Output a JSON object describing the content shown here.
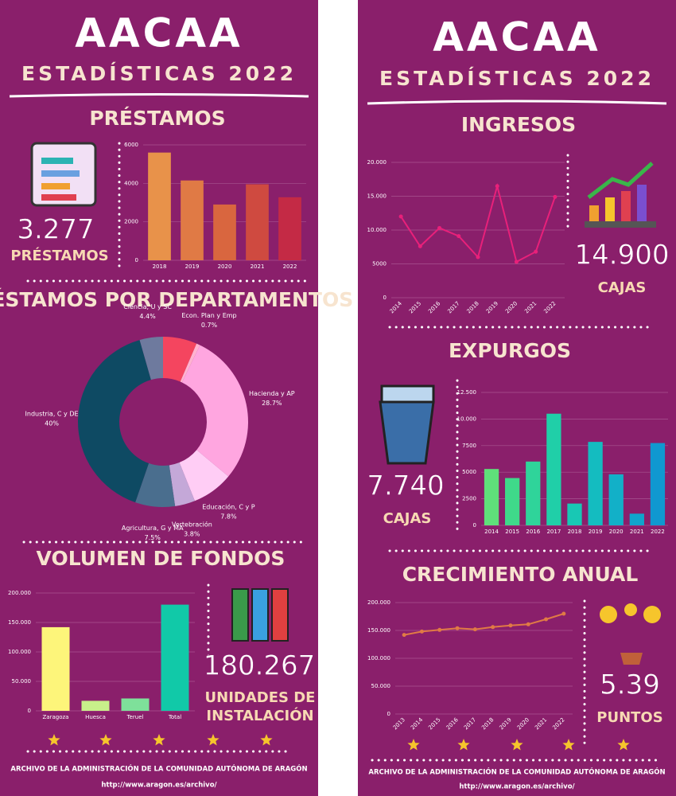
{
  "panels": [
    {
      "title": "AACAA",
      "subtitle": "ESTADÍSTICAS 2022",
      "footer": "ARCHIVO DE LA ADMINISTRACIÓN DE LA COMUNIDAD AUTÓNOMA DE ARAGÓN",
      "url": "http://www.aragon.es/archivo/"
    },
    {
      "title": "AACAA",
      "subtitle": "ESTADÍSTICAS 2022",
      "footer": "ARCHIVO DE LA ADMINISTRACIÓN DE LA COMUNIDAD AUTÓNOMA DE ARAGÓN",
      "url": "http://www.aragon.es/archivo/"
    }
  ],
  "chart_data": [
    {
      "type": "bar",
      "title": "PRÉSTAMOS",
      "categories": [
        "2018",
        "2019",
        "2020",
        "2021",
        "2022"
      ],
      "values": [
        5600,
        4150,
        2900,
        3950,
        3277
      ],
      "colors": [
        "#e8924a",
        "#e07a45",
        "#d9663f",
        "#cf4a40",
        "#c42a45"
      ],
      "ylim": [
        0,
        6000
      ],
      "yticks": [
        0,
        2000,
        4000,
        6000
      ],
      "grid": true,
      "annotations": [
        "3.277",
        "PRÉSTAMOS"
      ]
    },
    {
      "type": "pie",
      "title": "PRÉSTAMOS POR DEPARTAMENTOS",
      "categories": [
        null,
        "Econ. Plan y Emp",
        "Hacienda y AP",
        "Educación, C y P",
        "Vertebración",
        "Agricultura, G y MA",
        "Industria, C y DE",
        "Ciencia, U y SC"
      ],
      "values": [
        6.4,
        0.7,
        28.7,
        7.8,
        3.8,
        7.5,
        40,
        4.4
      ],
      "value_labels": [
        null,
        "0.7%",
        "28.7%",
        "7.8%",
        "3.8%",
        "7.5%",
        "40%",
        "4.4%"
      ],
      "colors": [
        "#f4455f",
        "#ffb3d0",
        "#ffa6e0",
        "#ffcdf5",
        "#c4a8d8",
        "#4a6e8e",
        "#0e4a63",
        "#6e7a9e"
      ]
    },
    {
      "type": "bar",
      "title": "VOLUMEN DE FONDOS",
      "categories": [
        "Zaragoza",
        "Huesca",
        "Teruel",
        "Total"
      ],
      "values": [
        142000,
        17000,
        21000,
        180267
      ],
      "colors": [
        "#fdf57a",
        "#c8f08a",
        "#7ee09a",
        "#11c9a8"
      ],
      "ylim": [
        0,
        200000
      ],
      "yticks": [
        0,
        {
          "value": 50000,
          "label": "50.000"
        },
        {
          "value": 100000,
          "label": "100.000"
        },
        {
          "value": 150000,
          "label": "150.000"
        },
        {
          "value": 200000,
          "label": "200.000"
        }
      ],
      "grid": true,
      "annotations": [
        "180.267",
        "UNIDADES DE",
        "INSTALACIÓN"
      ]
    },
    {
      "type": "line",
      "title": "INGRESOS",
      "categories": [
        "2014",
        "2015",
        "2016",
        "2017",
        "2018",
        "2019",
        "2020",
        "2021",
        "2022"
      ],
      "values": [
        12000,
        7600,
        10300,
        9100,
        6000,
        16500,
        5300,
        6800,
        14900
      ],
      "color": "#e8207a",
      "ylim": [
        0,
        20000
      ],
      "yticks": [
        0,
        5000,
        {
          "value": 10000,
          "label": "10.000"
        },
        {
          "value": 15000,
          "label": "15.000"
        },
        {
          "value": 20000,
          "label": "20.000"
        }
      ],
      "grid": true,
      "annotations": [
        "14.900",
        "CAJAS"
      ]
    },
    {
      "type": "bar",
      "title": "EXPURGOS",
      "categories": [
        "2014",
        "2015",
        "2016",
        "2017",
        "2018",
        "2019",
        "2020",
        "2021",
        "2022"
      ],
      "values": [
        5300,
        4450,
        6000,
        10500,
        2050,
        7850,
        4800,
        1100,
        7740
      ],
      "colors": [
        "#5fe07a",
        "#3fd98a",
        "#2fd49a",
        "#20cfa8",
        "#18c8b4",
        "#14bcc0",
        "#12b0c8",
        "#10a4cc",
        "#1098d0"
      ],
      "ylim": [
        0,
        12500
      ],
      "yticks": [
        0,
        2500,
        5000,
        7500,
        {
          "value": 10000,
          "label": "10.000"
        },
        {
          "value": 12500,
          "label": "12.500"
        }
      ],
      "grid": true,
      "annotations": [
        "7.740",
        "CAJAS"
      ]
    },
    {
      "type": "line",
      "title": "CRECIMIENTO ANUAL",
      "categories": [
        "2013",
        "2014",
        "2015",
        "2016",
        "2017",
        "2018",
        "2019",
        "2020",
        "2021",
        "2022"
      ],
      "values": [
        142000,
        148000,
        151000,
        154000,
        152000,
        156000,
        159000,
        161000,
        170000,
        180000
      ],
      "color": "#e07a45",
      "ylim": [
        0,
        200000
      ],
      "yticks": [
        0,
        {
          "value": 50000,
          "label": "50.000"
        },
        {
          "value": 100000,
          "label": "100.000"
        },
        {
          "value": 150000,
          "label": "150.000"
        },
        {
          "value": 200000,
          "label": "200.000"
        }
      ],
      "grid": true,
      "annotations": [
        "5.39",
        "PUNTOS"
      ]
    }
  ]
}
